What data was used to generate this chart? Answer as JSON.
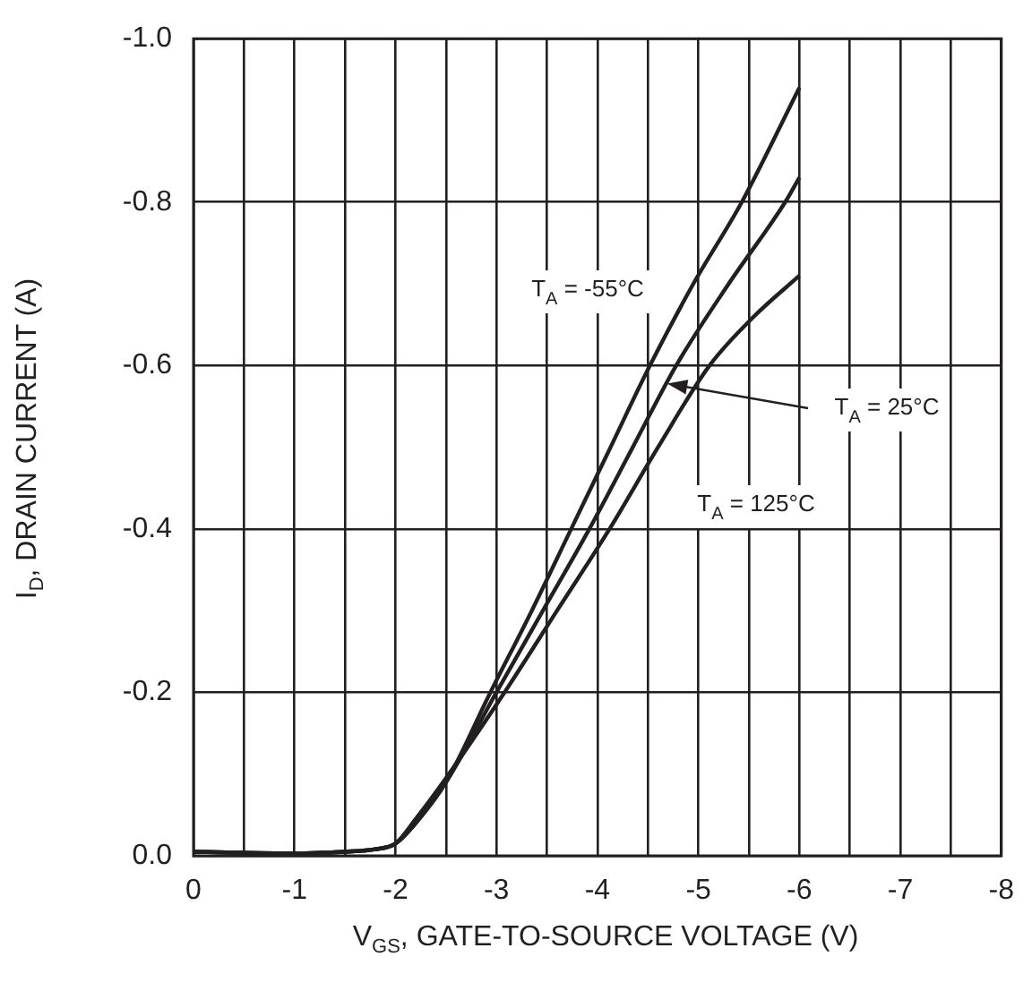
{
  "chart_data": {
    "type": "line",
    "xlabel": "V$_{GS}$, GATE-TO-SOURCE VOLTAGE (V)",
    "ylabel": "I$_{D}$, DRAIN CURRENT (A)",
    "xlim": [
      0,
      -8
    ],
    "ylim": [
      0,
      -1
    ],
    "xticks": [
      0,
      {
        "value": -0.5,
        "label": null
      },
      -1,
      {
        "value": -1.5,
        "label": null
      },
      -2,
      {
        "value": -2.5,
        "label": null
      },
      -3,
      {
        "value": -3.5,
        "label": null
      },
      -4,
      {
        "value": -4.5,
        "label": null
      },
      -5,
      {
        "value": -5.5,
        "label": null
      },
      -6,
      {
        "value": -6.5,
        "label": null
      },
      -7,
      {
        "value": -7.5,
        "label": null
      },
      -8
    ],
    "yticks": [
      {
        "value": 0,
        "label": "0.0"
      },
      {
        "value": -0.2,
        "label": "-0.2"
      },
      {
        "value": -0.4,
        "label": "-0.4"
      },
      {
        "value": -0.6,
        "label": "-0.6"
      },
      {
        "value": -0.8,
        "label": "-0.8"
      },
      {
        "value": -1,
        "label": "-1.0"
      }
    ],
    "grid": true,
    "legend": false,
    "marker": "none",
    "line_style": "solid",
    "series": [
      {
        "color": "#231f20",
        "x": [
          0,
          -1,
          -1.5,
          -1.8,
          -2,
          -2.2,
          -2.5,
          -2.94,
          -3.35,
          -3.74,
          -4.13,
          -4.52,
          -4.95,
          -5.43,
          -6
        ],
        "values": [
          -0.005,
          -0.003,
          -0.005,
          -0.008,
          -0.015,
          -0.04,
          -0.09,
          -0.2,
          -0.3,
          -0.4,
          -0.5,
          -0.6,
          -0.7,
          -0.8,
          -0.94
        ]
      },
      {
        "color": "#231f20",
        "x": [
          0,
          -1,
          -1.5,
          -1.8,
          -2,
          -2.2,
          -2.5,
          -3,
          -3.46,
          -3.92,
          -4.35,
          -4.78,
          -5.3,
          -5.86,
          -6
        ],
        "values": [
          -0.005,
          -0.003,
          -0.005,
          -0.008,
          -0.015,
          -0.04,
          -0.09,
          -0.2,
          -0.3,
          -0.4,
          -0.5,
          -0.6,
          -0.7,
          -0.8,
          -0.83
        ]
      },
      {
        "color": "#231f20",
        "x": [
          0,
          -1,
          -1.5,
          -1.8,
          -2,
          -2.2,
          -2.5,
          -3.08,
          -3.6,
          -4.12,
          -4.6,
          -5.11,
          -5.55,
          -6
        ],
        "values": [
          -0.005,
          -0.003,
          -0.005,
          -0.008,
          -0.015,
          -0.045,
          -0.095,
          -0.2,
          -0.3,
          -0.4,
          -0.5,
          -0.6,
          -0.66,
          -0.71
        ]
      }
    ],
    "annotations": [
      "T$_{A}$ = -55°C",
      {
        "text": "T$_{A}$ = 25°C",
        "x": -4.69,
        "y": -0.578
      },
      "T$_{A}$ = 125°C"
    ]
  }
}
